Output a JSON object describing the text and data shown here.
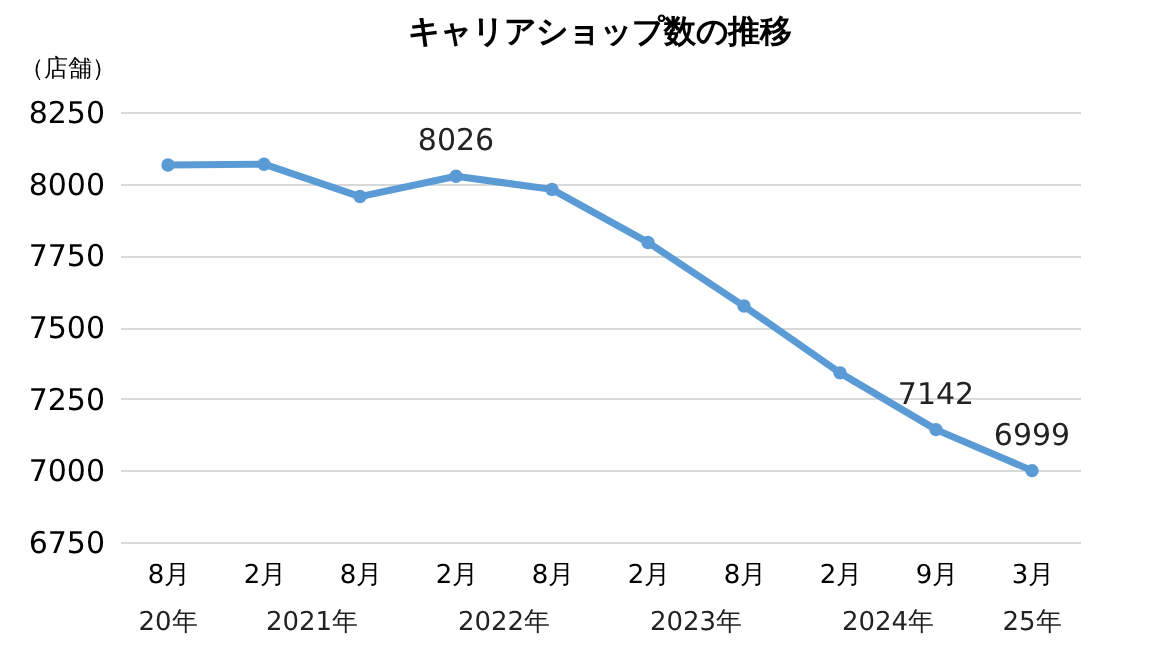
{
  "chart_data": {
    "type": "line",
    "title": "キャリアショップ数の推移",
    "ylabel": "（店舗）",
    "categories": [
      "8月",
      "2月",
      "8月",
      "2月",
      "8月",
      "2月",
      "8月",
      "2月",
      "9月",
      "3月"
    ],
    "series": [
      {
        "color": "#5b9bd5",
        "values": [
          8065,
          8068,
          7955,
          8026,
          7980,
          7795,
          7573,
          7340,
          7142,
          6999
        ],
        "value_labels": [
          null,
          null,
          null,
          "8026",
          null,
          null,
          null,
          null,
          "7142",
          "6999"
        ]
      }
    ],
    "annotations": [
      "20年",
      "2021年",
      "2022年",
      "2023年",
      "2024年",
      "25年"
    ],
    "ylim": [
      6750,
      8250
    ],
    "yticks": [
      6750,
      7000,
      7250,
      7500,
      7750,
      8000,
      8250
    ],
    "grid": "y",
    "marker": "circle",
    "line_style": "solid"
  }
}
